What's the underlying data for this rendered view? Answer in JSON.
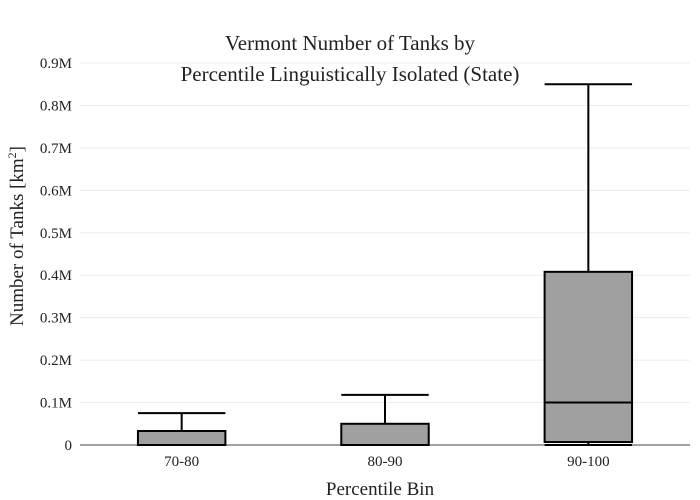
{
  "chart_data": {
    "type": "box",
    "title_lines": [
      "Vermont Number of Tanks by",
      "Percentile Linguistically Isolated (State)"
    ],
    "xlabel": "Percentile Bin",
    "ylabel_main": "Number of Tanks  [km",
    "ylabel_sup": "2",
    "ylabel_end": "]",
    "ylim": [
      0,
      900000
    ],
    "yticks": [
      {
        "value": 0,
        "label": "0"
      },
      {
        "value": 100000,
        "label": "0.1M"
      },
      {
        "value": 200000,
        "label": "0.2M"
      },
      {
        "value": 300000,
        "label": "0.3M"
      },
      {
        "value": 400000,
        "label": "0.4M"
      },
      {
        "value": 500000,
        "label": "0.5M"
      },
      {
        "value": 600000,
        "label": "0.6M"
      },
      {
        "value": 700000,
        "label": "0.7M"
      },
      {
        "value": 800000,
        "label": "0.8M"
      },
      {
        "value": 900000,
        "label": "0.9M"
      }
    ],
    "categories": [
      "70-80",
      "80-90",
      "90-100"
    ],
    "boxes": [
      {
        "category": "70-80",
        "min": 0,
        "q1": 0,
        "median": 0,
        "q3": 33000,
        "max": 75000
      },
      {
        "category": "80-90",
        "min": 0,
        "q1": 0,
        "median": 0,
        "q3": 50000,
        "max": 118000
      },
      {
        "category": "90-100",
        "min": 0,
        "q1": 7000,
        "median": 100000,
        "q3": 408000,
        "max": 850000
      }
    ],
    "grid": true
  }
}
